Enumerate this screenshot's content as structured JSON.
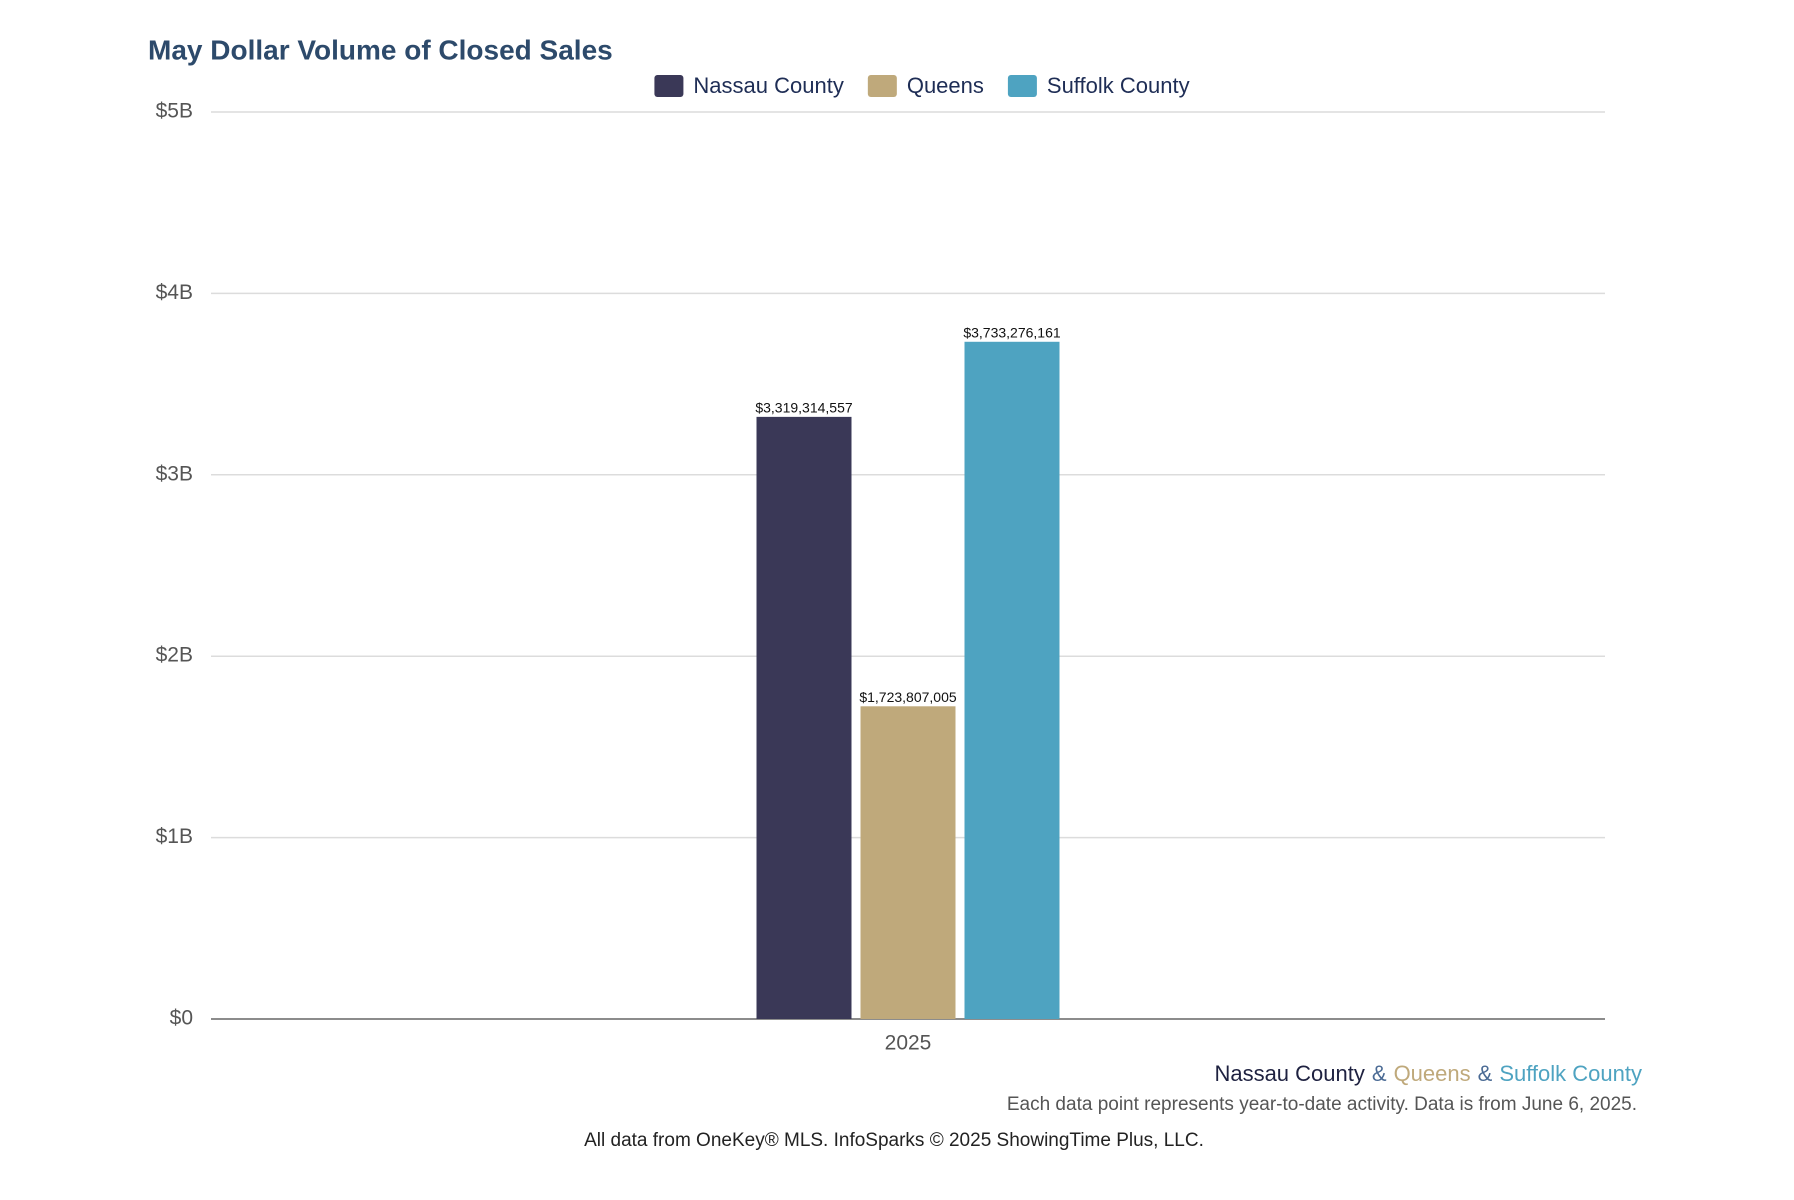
{
  "chart_data": {
    "type": "bar",
    "title": "May Dollar Volume of Closed Sales",
    "categories": [
      "2025"
    ],
    "series": [
      {
        "name": "Nassau County",
        "color": "#3a3857",
        "values": [
          3319314557
        ],
        "value_labels": [
          "$3,319,314,557"
        ]
      },
      {
        "name": "Queens",
        "color": "#bfa97b",
        "values": [
          1723807005
        ],
        "value_labels": [
          "$1,723,807,005"
        ]
      },
      {
        "name": "Suffolk County",
        "color": "#4ea3c1",
        "values": [
          3733276161
        ],
        "value_labels": [
          "$3,733,276,161"
        ]
      }
    ],
    "ylim": [
      0,
      5000000000
    ],
    "yticks": [
      {
        "value": 0,
        "label": "$0"
      },
      {
        "value": 1000000000,
        "label": "$1B"
      },
      {
        "value": 2000000000,
        "label": "$2B"
      },
      {
        "value": 3000000000,
        "label": "$3B"
      },
      {
        "value": 4000000000,
        "label": "$4B"
      },
      {
        "value": 5000000000,
        "label": "$5B"
      }
    ],
    "grid": true,
    "legend": "top",
    "caption_separator": "&",
    "caption_separator_color": "#4a6a94",
    "note": "Each data point represents year-to-date activity. Data is from June 6, 2025.",
    "source": "All data from OneKey® MLS. InfoSparks © 2025 ShowingTime Plus, LLC."
  }
}
